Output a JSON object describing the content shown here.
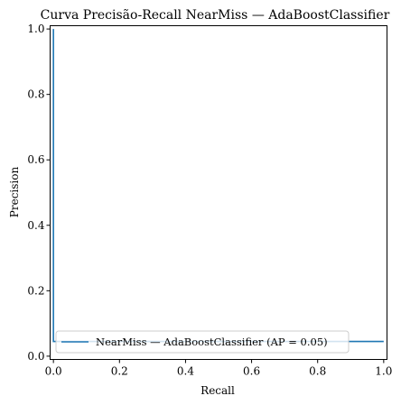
{
  "chart_data": {
    "type": "line",
    "title": "Curva Precisão-Recall NearMiss — AdaBoostClassifier",
    "xlabel": "Recall",
    "ylabel": "Precision",
    "xlim": [
      -0.01,
      1.01
    ],
    "ylim": [
      -0.01,
      1.01
    ],
    "xticks": [
      "0.0",
      "0.2",
      "0.4",
      "0.6",
      "0.8",
      "1.0"
    ],
    "yticks": [
      "0.0",
      "0.2",
      "0.4",
      "0.6",
      "0.8",
      "1.0"
    ],
    "grid": false,
    "legend_position": "lower-right",
    "series": [
      {
        "name": "NearMiss — AdaBoostClassifier (AP = 0.05)",
        "color": "#1f77b4",
        "x": [
          0.0,
          0.0,
          1.0
        ],
        "y": [
          1.0,
          0.045,
          0.045
        ]
      }
    ]
  }
}
